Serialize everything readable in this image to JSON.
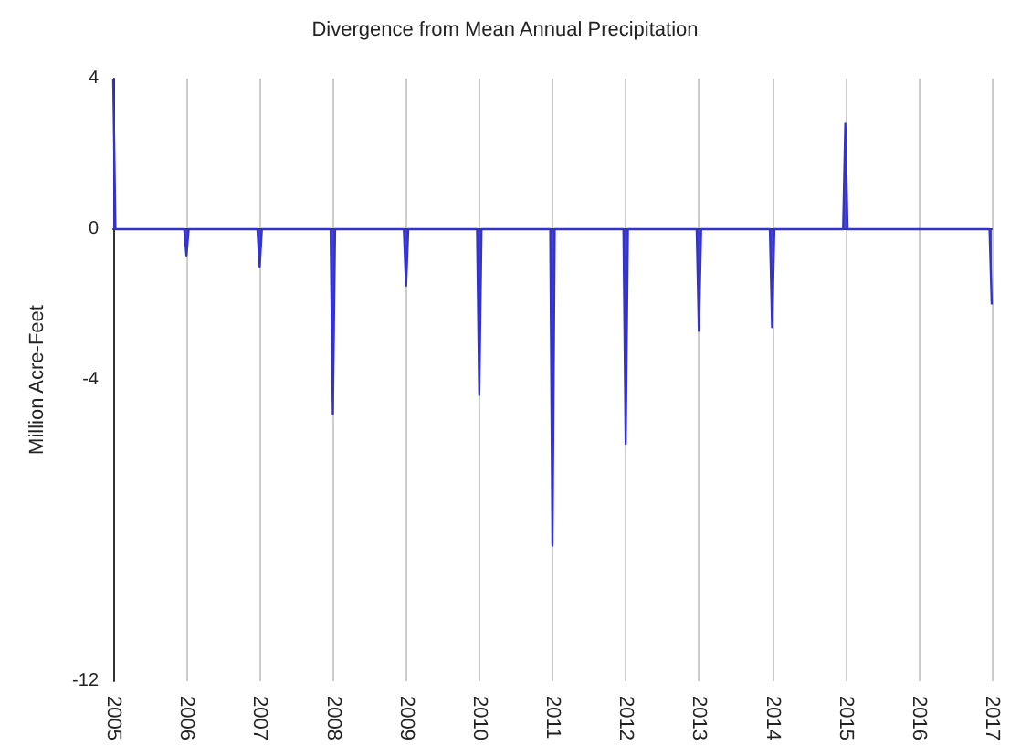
{
  "chart_data": {
    "type": "area",
    "title": "Divergence from Mean Annual Precipitation",
    "ylabel": "Million Acre-Feet",
    "x": [
      2005,
      2005.03,
      2005.97,
      2006,
      2006.03,
      2006.97,
      2007,
      2007.03,
      2007.97,
      2008,
      2008.03,
      2008.97,
      2009,
      2009.03,
      2009.97,
      2010,
      2010.03,
      2010.97,
      2011,
      2011.03,
      2011.97,
      2012,
      2012.03,
      2012.97,
      2013,
      2013.03,
      2013.97,
      2014,
      2014.03,
      2014.97,
      2015,
      2015.03,
      2016,
      2016.97,
      2017
    ],
    "values": [
      4,
      0,
      0,
      -0.7,
      0,
      0,
      -1.0,
      0,
      0,
      -4.9,
      0,
      0,
      -1.5,
      0,
      0,
      -4.4,
      0,
      0,
      -8.4,
      0,
      0,
      -5.7,
      0,
      0,
      -2.7,
      0,
      0,
      -2.6,
      0,
      0,
      2.8,
      0,
      0,
      0,
      -2.0
    ],
    "color": "#3333cc",
    "xlim": [
      2005,
      2017
    ],
    "xticks": [
      2005,
      2006,
      2007,
      2008,
      2009,
      2010,
      2011,
      2012,
      2013,
      2014,
      2015,
      2016,
      2017
    ],
    "ylim": [
      -12,
      4
    ],
    "yticks": [
      -12,
      -4,
      0,
      4
    ],
    "grid": "x",
    "marker": "none"
  }
}
